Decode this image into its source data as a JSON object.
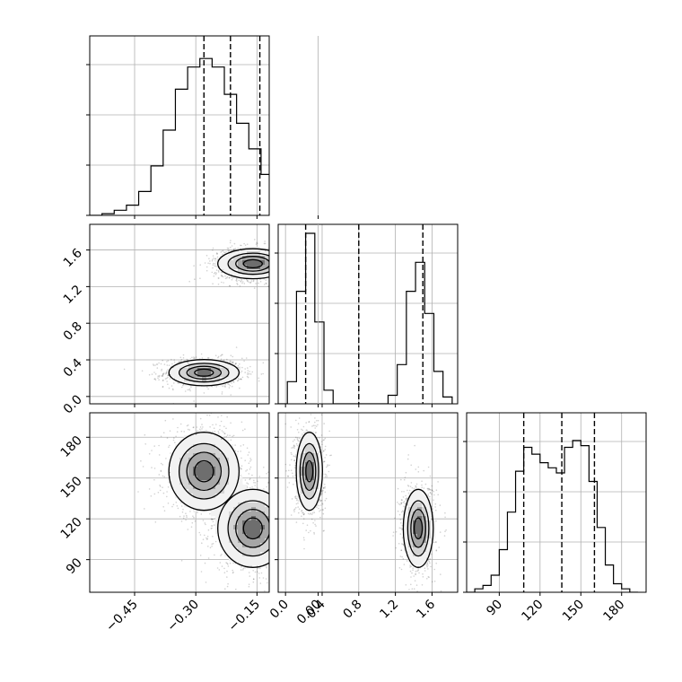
{
  "chart_data": {
    "type": "corner",
    "grid": true,
    "parameters": [
      {
        "name": "",
        "range": [
          -0.56,
          -0.12
        ],
        "ticks": [
          -0.45,
          -0.3,
          -0.15,
          0.0
        ],
        "tick_labels": [
          "−0.45",
          "−0.30",
          "−0.15",
          "0.00"
        ]
      },
      {
        "name": "",
        "range": [
          -0.08,
          1.88
        ],
        "ticks": [
          0.0,
          0.4,
          0.8,
          1.2,
          1.6
        ],
        "tick_labels": [
          "0.0",
          "0.4",
          "0.8",
          "1.2",
          "1.6"
        ]
      },
      {
        "name": "",
        "range": [
          66,
          198
        ],
        "ticks": [
          90,
          120,
          150,
          180
        ],
        "tick_labels": [
          "90",
          "120",
          "150",
          "180"
        ]
      }
    ],
    "quantile_lines": [
      [
        -0.28,
        -0.215,
        -0.143
      ],
      [
        0.22,
        0.8,
        1.5
      ],
      [
        108,
        136,
        160
      ]
    ],
    "histograms": [
      {
        "edges": [
          -0.56,
          -0.53,
          -0.5,
          -0.47,
          -0.44,
          -0.41,
          -0.38,
          -0.35,
          -0.32,
          -0.29,
          -0.26,
          -0.23,
          -0.2,
          -0.17,
          -0.14,
          -0.11,
          -0.08,
          -0.05,
          -0.02,
          0.01,
          0.04,
          0.07
        ],
        "counts": [
          0.0,
          0.01,
          0.03,
          0.06,
          0.14,
          0.29,
          0.5,
          0.74,
          0.87,
          0.92,
          0.87,
          0.71,
          0.54,
          0.39,
          0.24,
          0.12,
          0.06,
          0.03,
          0.01,
          0.0,
          0.0
        ]
      },
      {
        "edges": [
          -0.08,
          0.02,
          0.12,
          0.22,
          0.32,
          0.42,
          0.52,
          0.62,
          0.72,
          0.82,
          0.92,
          1.02,
          1.12,
          1.22,
          1.32,
          1.42,
          1.52,
          1.62,
          1.72,
          1.82
        ],
        "counts": [
          0.0,
          0.13,
          0.66,
          1.0,
          0.48,
          0.08,
          0.0,
          0.0,
          0.0,
          0.0,
          0.0,
          0.0,
          0.05,
          0.23,
          0.66,
          0.83,
          0.53,
          0.19,
          0.04
        ]
      },
      {
        "edges": [
          66,
          72,
          78,
          84,
          90,
          96,
          102,
          108,
          114,
          120,
          126,
          132,
          138,
          144,
          150,
          156,
          162,
          168,
          174,
          180,
          186,
          192
        ],
        "counts": [
          0.0,
          0.02,
          0.04,
          0.1,
          0.25,
          0.47,
          0.71,
          0.85,
          0.81,
          0.76,
          0.73,
          0.7,
          0.85,
          0.89,
          0.86,
          0.65,
          0.38,
          0.16,
          0.05,
          0.02,
          0.0
        ]
      }
    ],
    "modes": [
      {
        "p0": -0.28,
        "p1": 0.26,
        "p2": 155,
        "s0": 0.042,
        "s1": 0.07,
        "s2": 14,
        "weight": 0.5
      },
      {
        "p0": -0.16,
        "p1": 1.45,
        "p2": 113,
        "s0": 0.042,
        "s1": 0.08,
        "s2": 14,
        "weight": 0.5
      }
    ],
    "density_levels": 4
  }
}
